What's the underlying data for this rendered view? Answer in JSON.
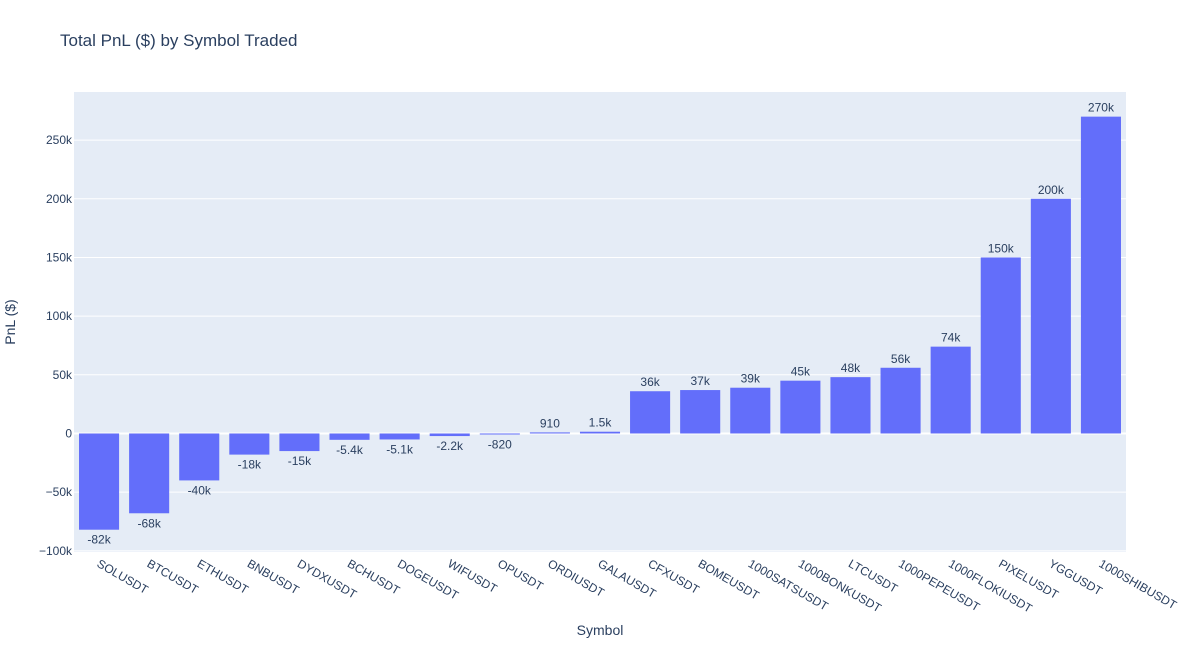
{
  "colors": {
    "plot_background": "#e5ecf6",
    "gridline": "#ffffff",
    "bar": "#636efa",
    "text": "#2a3f5f"
  },
  "chart_data": {
    "type": "bar",
    "title": "Total PnL ($) by Symbol Traded",
    "xlabel": "Symbol",
    "ylabel": "PnL ($)",
    "ylim": [
      -101000,
      291000
    ],
    "yticks": [
      -100000,
      -50000,
      0,
      50000,
      100000,
      150000,
      200000,
      250000
    ],
    "ytick_labels": [
      "−100k",
      "−50k",
      "0",
      "50k",
      "100k",
      "150k",
      "200k",
      "250k"
    ],
    "grid": true,
    "categories": [
      "SOLUSDT",
      "BTCUSDT",
      "ETHUSDT",
      "BNBUSDT",
      "DYDXUSDT",
      "BCHUSDT",
      "DOGEUSDT",
      "WIFUSDT",
      "OPUSDT",
      "ORDIUSDT",
      "GALAUSDT",
      "CFXUSDT",
      "BOMEUSDT",
      "1000SATSUSDT",
      "1000BONKUSDT",
      "LTCUSDT",
      "1000PEPEUSDT",
      "1000FLOKIUSDT",
      "PIXELUSDT",
      "YGGUSDT",
      "1000SHIBUSDT"
    ],
    "values": [
      -82000,
      -68000,
      -40000,
      -18000,
      -15000,
      -5400,
      -5100,
      -2200,
      -820,
      910,
      1500,
      36000,
      37000,
      39000,
      45000,
      48000,
      56000,
      74000,
      150000,
      200000,
      270000
    ],
    "data_labels": [
      "-82k",
      "-68k",
      "-40k",
      "-18k",
      "-15k",
      "-5.4k",
      "-5.1k",
      "-2.2k",
      "-820",
      "910",
      "1.5k",
      "36k",
      "37k",
      "39k",
      "45k",
      "48k",
      "56k",
      "74k",
      "150k",
      "200k",
      "270k"
    ]
  }
}
